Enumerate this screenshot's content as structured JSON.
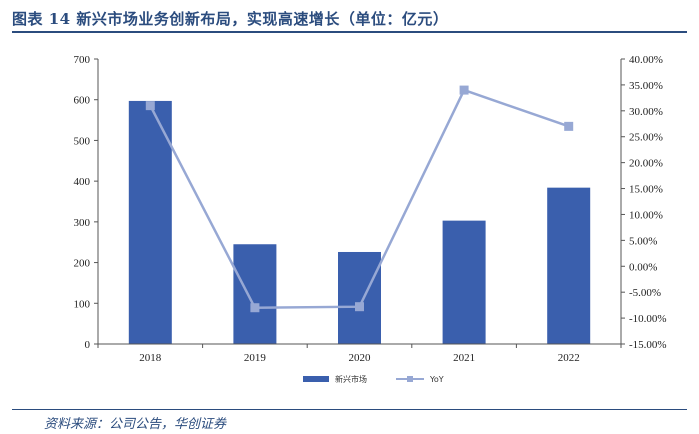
{
  "title": "图表 14   新兴市场业务创新布局，实现高速增长（单位：亿元）",
  "source": "资料来源：公司公告，华创证券",
  "chart_data": {
    "type": "bar+line",
    "categories": [
      "2018",
      "2019",
      "2020",
      "2021",
      "2022"
    ],
    "series": [
      {
        "name": "新兴市场",
        "type": "bar",
        "axis": "left",
        "color": "#3a5fad",
        "values": [
          597,
          245,
          226,
          303,
          384
        ]
      },
      {
        "name": "YoY",
        "type": "line",
        "axis": "right",
        "color": "#97a8d4",
        "values": [
          0.31,
          -0.08,
          -0.078,
          0.34,
          0.27
        ]
      }
    ],
    "y_left": {
      "min": 0,
      "max": 700,
      "step": 100,
      "ticks": [
        "0",
        "100",
        "200",
        "300",
        "400",
        "500",
        "600",
        "700"
      ]
    },
    "y_right": {
      "min": -0.15,
      "max": 0.4,
      "step": 0.05,
      "ticks": [
        "-15.00%",
        "-10.00%",
        "-5.00%",
        "0.00%",
        "5.00%",
        "10.00%",
        "15.00%",
        "20.00%",
        "25.00%",
        "30.00%",
        "35.00%",
        "40.00%"
      ]
    },
    "grid": false,
    "legend_position": "bottom-center"
  }
}
